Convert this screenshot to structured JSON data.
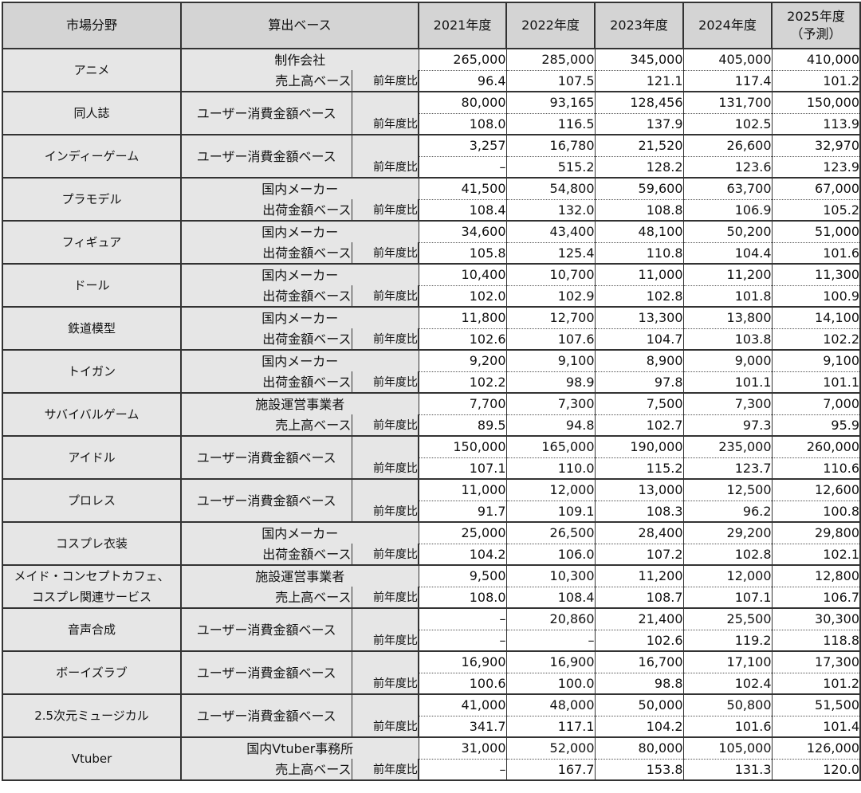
{
  "headers": {
    "category": "市場分野",
    "basis": "算出ベース",
    "years": [
      "2021年度",
      "2022年度",
      "2023年度",
      "2024年度",
      "2025年度"
    ],
    "forecast_note": "（予測）"
  },
  "yoy_label": "前年度比",
  "rows": [
    {
      "category": [
        "アニメ"
      ],
      "basis": [
        "制作会社",
        "売上高ベース"
      ],
      "values": [
        "265,000",
        "285,000",
        "345,000",
        "405,000",
        "410,000"
      ],
      "yoy": [
        "96.4",
        "107.5",
        "121.1",
        "117.4",
        "101.2"
      ]
    },
    {
      "category": [
        "同人誌"
      ],
      "basis": [
        "ユーザー消費金額ベース"
      ],
      "values": [
        "80,000",
        "93,165",
        "128,456",
        "131,700",
        "150,000"
      ],
      "yoy": [
        "108.0",
        "116.5",
        "137.9",
        "102.5",
        "113.9"
      ]
    },
    {
      "category": [
        "インディーゲーム"
      ],
      "basis": [
        "ユーザー消費金額ベース"
      ],
      "values": [
        "3,257",
        "16,780",
        "21,520",
        "26,600",
        "32,970"
      ],
      "yoy": [
        "–",
        "515.2",
        "128.2",
        "123.6",
        "123.9"
      ]
    },
    {
      "category": [
        "プラモデル"
      ],
      "basis": [
        "国内メーカー",
        "出荷金額ベース"
      ],
      "values": [
        "41,500",
        "54,800",
        "59,600",
        "63,700",
        "67,000"
      ],
      "yoy": [
        "108.4",
        "132.0",
        "108.8",
        "106.9",
        "105.2"
      ]
    },
    {
      "category": [
        "フィギュア"
      ],
      "basis": [
        "国内メーカー",
        "出荷金額ベース"
      ],
      "values": [
        "34,600",
        "43,400",
        "48,100",
        "50,200",
        "51,000"
      ],
      "yoy": [
        "105.8",
        "125.4",
        "110.8",
        "104.4",
        "101.6"
      ]
    },
    {
      "category": [
        "ドール"
      ],
      "basis": [
        "国内メーカー",
        "出荷金額ベース"
      ],
      "values": [
        "10,400",
        "10,700",
        "11,000",
        "11,200",
        "11,300"
      ],
      "yoy": [
        "102.0",
        "102.9",
        "102.8",
        "101.8",
        "100.9"
      ]
    },
    {
      "category": [
        "鉄道模型"
      ],
      "basis": [
        "国内メーカー",
        "出荷金額ベース"
      ],
      "values": [
        "11,800",
        "12,700",
        "13,300",
        "13,800",
        "14,100"
      ],
      "yoy": [
        "102.6",
        "107.6",
        "104.7",
        "103.8",
        "102.2"
      ]
    },
    {
      "category": [
        "トイガン"
      ],
      "basis": [
        "国内メーカー",
        "出荷金額ベース"
      ],
      "values": [
        "9,200",
        "9,100",
        "8,900",
        "9,000",
        "9,100"
      ],
      "yoy": [
        "102.2",
        "98.9",
        "97.8",
        "101.1",
        "101.1"
      ]
    },
    {
      "category": [
        "サバイバルゲーム"
      ],
      "basis": [
        "施設運営事業者",
        "売上高ベース"
      ],
      "values": [
        "7,700",
        "7,300",
        "7,500",
        "7,300",
        "7,000"
      ],
      "yoy": [
        "89.5",
        "94.8",
        "102.7",
        "97.3",
        "95.9"
      ]
    },
    {
      "category": [
        "アイドル"
      ],
      "basis": [
        "ユーザー消費金額ベース"
      ],
      "values": [
        "150,000",
        "165,000",
        "190,000",
        "235,000",
        "260,000"
      ],
      "yoy": [
        "107.1",
        "110.0",
        "115.2",
        "123.7",
        "110.6"
      ]
    },
    {
      "category": [
        "プロレス"
      ],
      "basis": [
        "ユーザー消費金額ベース"
      ],
      "values": [
        "11,000",
        "12,000",
        "13,000",
        "12,500",
        "12,600"
      ],
      "yoy": [
        "91.7",
        "109.1",
        "108.3",
        "96.2",
        "100.8"
      ]
    },
    {
      "category": [
        "コスプレ衣装"
      ],
      "basis": [
        "国内メーカー",
        "出荷金額ベース"
      ],
      "values": [
        "25,000",
        "26,500",
        "28,400",
        "29,200",
        "29,800"
      ],
      "yoy": [
        "104.2",
        "106.0",
        "107.2",
        "102.8",
        "102.1"
      ]
    },
    {
      "category": [
        "メイド・コンセプトカフェ、",
        "コスプレ関連サービス"
      ],
      "basis": [
        "施設運営事業者",
        "売上高ベース"
      ],
      "values": [
        "9,500",
        "10,300",
        "11,200",
        "12,000",
        "12,800"
      ],
      "yoy": [
        "108.0",
        "108.4",
        "108.7",
        "107.1",
        "106.7"
      ]
    },
    {
      "category": [
        "音声合成"
      ],
      "basis": [
        "ユーザー消費金額ベース"
      ],
      "values": [
        "–",
        "20,860",
        "21,400",
        "25,500",
        "30,300"
      ],
      "yoy": [
        "–",
        "–",
        "102.6",
        "119.2",
        "118.8"
      ]
    },
    {
      "category": [
        "ボーイズラブ"
      ],
      "basis": [
        "ユーザー消費金額ベース"
      ],
      "values": [
        "16,900",
        "16,900",
        "16,700",
        "17,100",
        "17,300"
      ],
      "yoy": [
        "100.6",
        "100.0",
        "98.8",
        "102.4",
        "101.2"
      ]
    },
    {
      "category": [
        "2.5次元ミュージカル"
      ],
      "basis": [
        "ユーザー消費金額ベース"
      ],
      "values": [
        "41,000",
        "48,000",
        "50,000",
        "50,800",
        "51,500"
      ],
      "yoy": [
        "341.7",
        "117.1",
        "104.2",
        "101.6",
        "101.4"
      ]
    },
    {
      "category": [
        "Vtuber"
      ],
      "basis": [
        "国内Vtuber事務所",
        "売上高ベース"
      ],
      "values": [
        "31,000",
        "52,000",
        "80,000",
        "105,000",
        "126,000"
      ],
      "yoy": [
        "–",
        "167.7",
        "153.8",
        "131.3",
        "120.0"
      ]
    }
  ]
}
